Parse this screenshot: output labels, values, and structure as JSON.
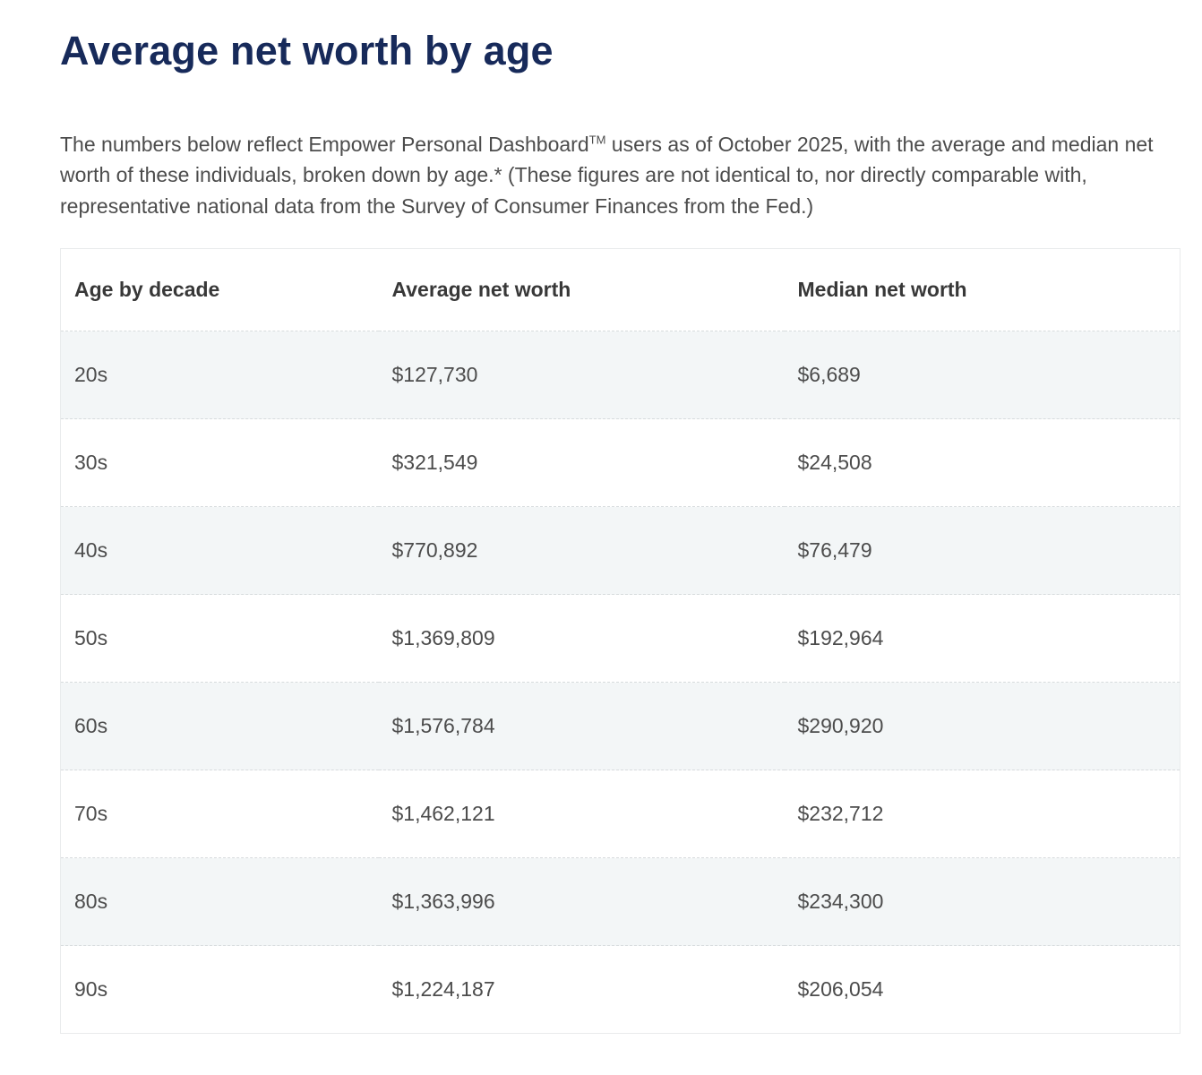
{
  "page": {
    "title": "Average net worth by age",
    "intro_part1": "The numbers below reflect Empower Personal Dashboard",
    "intro_tm": "TM",
    "intro_part2": " users as of October 2025, with the average and median net worth of these individuals, broken down by age.* (These figures are not identical to, nor directly comparable with, representative national data from the Survey of Consumer Finances from the Fed.)"
  },
  "colors": {
    "title_navy": "#172a5a",
    "body_text": "#4c4c4c",
    "header_text": "#383838",
    "row_stripe": "#f3f6f7",
    "table_border": "#e9ebec",
    "row_divider": "#d7dbdd"
  },
  "table": {
    "headers": [
      "Age by decade",
      "Average net worth",
      "Median net worth"
    ],
    "rows": [
      {
        "age": "20s",
        "average": "$127,730",
        "median": "$6,689"
      },
      {
        "age": "30s",
        "average": "$321,549",
        "median": "$24,508"
      },
      {
        "age": "40s",
        "average": "$770,892",
        "median": "$76,479"
      },
      {
        "age": "50s",
        "average": "$1,369,809",
        "median": "$192,964"
      },
      {
        "age": "60s",
        "average": "$1,576,784",
        "median": "$290,920"
      },
      {
        "age": "70s",
        "average": "$1,462,121",
        "median": "$232,712"
      },
      {
        "age": "80s",
        "average": "$1,363,996",
        "median": "$234,300"
      },
      {
        "age": "90s",
        "average": "$1,224,187",
        "median": "$206,054"
      }
    ]
  },
  "chart_data": {
    "type": "table",
    "title": "Average net worth by age",
    "categories": [
      "20s",
      "30s",
      "40s",
      "50s",
      "60s",
      "70s",
      "80s",
      "90s"
    ],
    "series": [
      {
        "name": "Average net worth",
        "values": [
          127730,
          321549,
          770892,
          1369809,
          1576784,
          1462121,
          1363996,
          1224187
        ]
      },
      {
        "name": "Median net worth",
        "values": [
          6689,
          24508,
          76479,
          192964,
          290920,
          232712,
          234300,
          206054
        ]
      }
    ]
  }
}
